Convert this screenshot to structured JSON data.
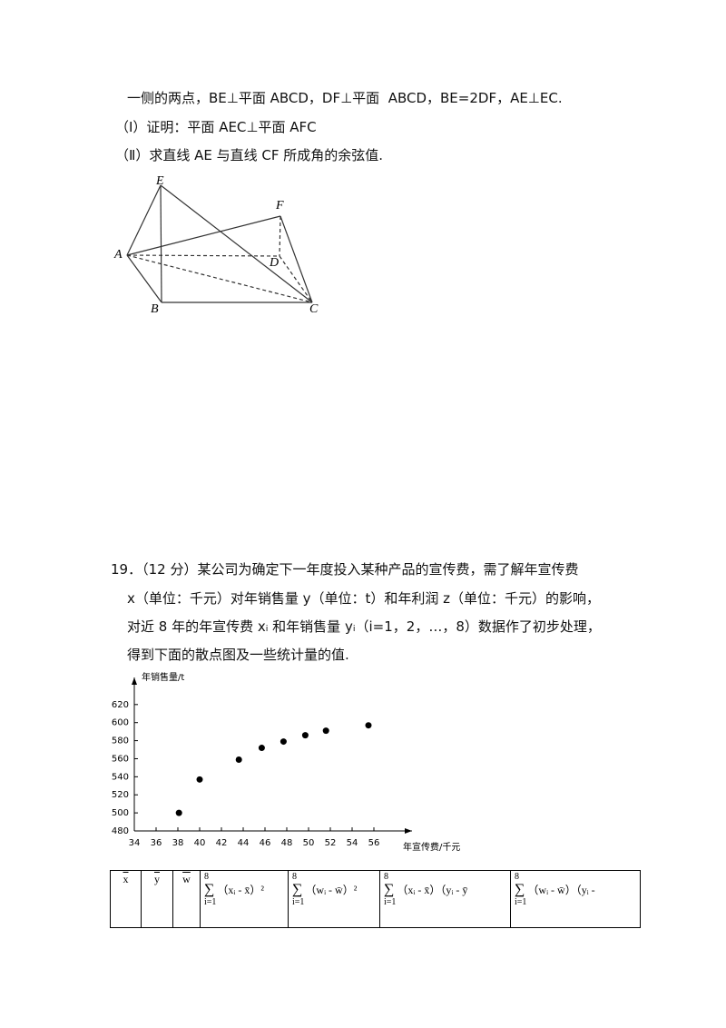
{
  "problem18": {
    "lines": [
      "一侧的两点，BE⊥平面 ABCD，DF⊥平面  ABCD，BE=2DF，AE⊥EC.",
      "（Ⅰ）证明：平面 AEC⊥平面 AFC",
      "（Ⅱ）求直线 AE 与直线 CF 所成角的余弦值."
    ],
    "figure_labels": {
      "E": "E",
      "F": "F",
      "A": "A",
      "D": "D",
      "B": "B",
      "C": "C"
    }
  },
  "problem19": {
    "lines": [
      "19．（12 分）某公司为确定下一年度投入某种产品的宣传费，需了解年宣传费",
      "x（单位：千元）对年销售量 y（单位：t）和年利润 z（单位：千元）的影响，",
      "对近 8 年的年宣传费 xᵢ 和年销售量 yᵢ（i=1，2，…，8）数据作了初步处理，",
      "得到下面的散点图及一些统计量的值."
    ]
  },
  "chart_data": {
    "type": "scatter",
    "y_label": "年销售量/t",
    "x_label": "年宣传费/千元",
    "x": [
      38.1,
      40,
      43.6,
      45.7,
      47.7,
      49.7,
      51.6,
      55.5
    ],
    "values": [
      500,
      537,
      559,
      572,
      579,
      586,
      591,
      597
    ],
    "xlim": [
      34,
      59.5
    ],
    "ylim": [
      480,
      650
    ],
    "xticks": [
      34,
      36,
      38,
      40,
      42,
      44,
      46,
      48,
      50,
      52,
      54,
      56
    ],
    "yticks": [
      480,
      500,
      520,
      540,
      560,
      580,
      600,
      620
    ],
    "color": "#000000"
  },
  "table": {
    "bars": [
      "x",
      "y",
      "w"
    ],
    "sums": [
      {
        "top": "8",
        "sigma": "∑",
        "bottom": "i=1",
        "expr": "（xᵢ - x̄）²"
      },
      {
        "top": "8",
        "sigma": "∑",
        "bottom": "i=1",
        "expr": "（wᵢ - w̄）²"
      },
      {
        "top": "8",
        "sigma": "∑",
        "bottom": "i=1",
        "expr": "（xᵢ - x̄）（yᵢ - ȳ"
      },
      {
        "top": "8",
        "sigma": "∑",
        "bottom": "i=1",
        "expr": "（wᵢ - w̄）（yᵢ -"
      }
    ]
  }
}
